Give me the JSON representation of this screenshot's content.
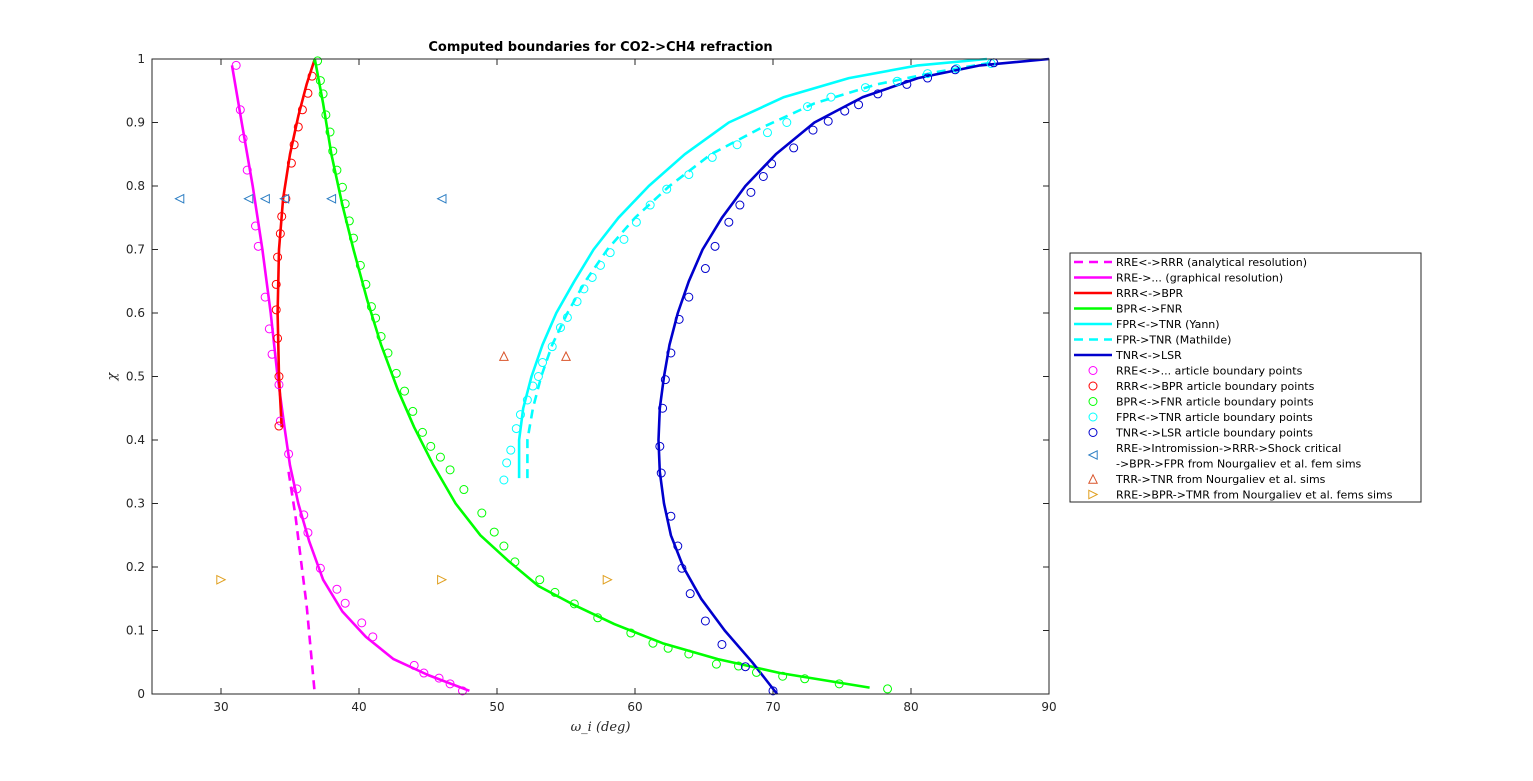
{
  "chart_data": {
    "type": "line",
    "title": "Computed boundaries for CO2->CH4 refraction",
    "xlabel": "ω_i (deg)",
    "ylabel": "χ",
    "xlim": [
      25,
      90
    ],
    "ylim": [
      0,
      1
    ],
    "xticks": [
      "30",
      "40",
      "50",
      "60",
      "70",
      "80",
      "90"
    ],
    "yticks": [
      "0",
      "0.1",
      "0.2",
      "0.3",
      "0.4",
      "0.5",
      "0.6",
      "0.7",
      "0.8",
      "0.9",
      "1"
    ],
    "legend_position": "east-outside",
    "series": [
      {
        "name": "RRE<->RRR (analytical resolution)",
        "color": "#ff00ff",
        "style": "dashed",
        "kind": "line",
        "points": [
          [
            34.9,
            0.35
          ],
          [
            35.4,
            0.28
          ],
          [
            35.8,
            0.21
          ],
          [
            36.2,
            0.14
          ],
          [
            36.5,
            0.07
          ],
          [
            36.8,
            0.0
          ]
        ]
      },
      {
        "name": "RRE->... (graphical resolution)",
        "color": "#ff00ff",
        "style": "solid",
        "kind": "line",
        "points": [
          [
            30.8,
            0.99
          ],
          [
            31.5,
            0.9
          ],
          [
            32.3,
            0.8
          ],
          [
            33.0,
            0.7
          ],
          [
            33.6,
            0.6
          ],
          [
            34.1,
            0.5
          ],
          [
            34.6,
            0.42
          ],
          [
            35.0,
            0.36
          ],
          [
            35.6,
            0.3
          ],
          [
            36.4,
            0.24
          ],
          [
            37.4,
            0.18
          ],
          [
            38.8,
            0.13
          ],
          [
            40.5,
            0.09
          ],
          [
            42.5,
            0.055
          ],
          [
            45.0,
            0.03
          ],
          [
            48.0,
            0.005
          ]
        ]
      },
      {
        "name": "RRR<->BPR",
        "color": "#ff0000",
        "style": "solid",
        "kind": "line",
        "points": [
          [
            34.4,
            0.42
          ],
          [
            34.2,
            0.5
          ],
          [
            34.1,
            0.6
          ],
          [
            34.2,
            0.7
          ],
          [
            34.5,
            0.78
          ],
          [
            35.0,
            0.85
          ],
          [
            35.6,
            0.91
          ],
          [
            36.2,
            0.96
          ],
          [
            36.8,
            1.0
          ]
        ]
      },
      {
        "name": "BPR<->FNR",
        "color": "#00ff00",
        "style": "solid",
        "kind": "line",
        "points": [
          [
            36.8,
            1.0
          ],
          [
            37.4,
            0.93
          ],
          [
            38.0,
            0.85
          ],
          [
            38.8,
            0.77
          ],
          [
            39.6,
            0.7
          ],
          [
            40.6,
            0.62
          ],
          [
            41.6,
            0.55
          ],
          [
            42.8,
            0.48
          ],
          [
            44.0,
            0.42
          ],
          [
            45.4,
            0.36
          ],
          [
            47.0,
            0.3
          ],
          [
            48.8,
            0.25
          ],
          [
            50.8,
            0.21
          ],
          [
            53.0,
            0.17
          ],
          [
            55.6,
            0.14
          ],
          [
            58.5,
            0.11
          ],
          [
            62.0,
            0.08
          ],
          [
            66.0,
            0.055
          ],
          [
            70.5,
            0.033
          ],
          [
            77.0,
            0.01
          ]
        ]
      },
      {
        "name": "FPR<->TNR (Yann)",
        "color": "#00ffff",
        "style": "solid",
        "kind": "line",
        "points": [
          [
            51.6,
            0.34
          ],
          [
            51.6,
            0.4
          ],
          [
            51.9,
            0.45
          ],
          [
            52.5,
            0.5
          ],
          [
            53.3,
            0.55
          ],
          [
            54.3,
            0.6
          ],
          [
            55.6,
            0.65
          ],
          [
            57.0,
            0.7
          ],
          [
            58.8,
            0.75
          ],
          [
            61.0,
            0.8
          ],
          [
            63.6,
            0.85
          ],
          [
            66.8,
            0.9
          ],
          [
            70.8,
            0.94
          ],
          [
            75.5,
            0.97
          ],
          [
            80.5,
            0.99
          ],
          [
            85.5,
            1.0
          ]
        ]
      },
      {
        "name": "FPR->TNR (Mathilde)",
        "color": "#00ffff",
        "style": "dashed",
        "kind": "line",
        "points": [
          [
            52.2,
            0.34
          ],
          [
            52.2,
            0.4
          ],
          [
            52.6,
            0.45
          ],
          [
            53.2,
            0.5
          ],
          [
            54.0,
            0.55
          ],
          [
            55.1,
            0.6
          ],
          [
            56.4,
            0.65
          ],
          [
            58.0,
            0.7
          ],
          [
            60.0,
            0.75
          ],
          [
            62.5,
            0.8
          ],
          [
            65.5,
            0.85
          ],
          [
            69.0,
            0.89
          ],
          [
            73.0,
            0.93
          ],
          [
            77.5,
            0.96
          ],
          [
            82.0,
            0.98
          ],
          [
            86.0,
            0.995
          ]
        ]
      },
      {
        "name": "TNR<->LSR",
        "color": "#0000cd",
        "style": "solid",
        "kind": "line",
        "points": [
          [
            70.3,
            0.0
          ],
          [
            68.5,
            0.05
          ],
          [
            66.5,
            0.1
          ],
          [
            64.8,
            0.15
          ],
          [
            63.5,
            0.2
          ],
          [
            62.6,
            0.25
          ],
          [
            62.1,
            0.3
          ],
          [
            61.8,
            0.35
          ],
          [
            61.7,
            0.4
          ],
          [
            61.8,
            0.45
          ],
          [
            62.1,
            0.5
          ],
          [
            62.5,
            0.55
          ],
          [
            63.1,
            0.6
          ],
          [
            63.9,
            0.65
          ],
          [
            64.9,
            0.7
          ],
          [
            66.3,
            0.75
          ],
          [
            68.0,
            0.8
          ],
          [
            70.2,
            0.85
          ],
          [
            73.0,
            0.9
          ],
          [
            76.5,
            0.94
          ],
          [
            80.5,
            0.97
          ],
          [
            85.0,
            0.99
          ],
          [
            90.0,
            1.0
          ]
        ]
      },
      {
        "name": "RRE<->... article boundary points",
        "color": "#ff00ff",
        "kind": "circle",
        "points": [
          [
            31.1,
            0.99
          ],
          [
            31.4,
            0.92
          ],
          [
            31.6,
            0.875
          ],
          [
            31.9,
            0.825
          ],
          [
            32.5,
            0.737
          ],
          [
            32.7,
            0.705
          ],
          [
            33.2,
            0.625
          ],
          [
            33.5,
            0.575
          ],
          [
            33.7,
            0.535
          ],
          [
            34.2,
            0.487
          ],
          [
            34.3,
            0.43
          ],
          [
            34.9,
            0.378
          ],
          [
            35.5,
            0.323
          ],
          [
            36.0,
            0.282
          ],
          [
            36.3,
            0.254
          ],
          [
            37.2,
            0.198
          ],
          [
            38.4,
            0.165
          ],
          [
            39.0,
            0.143
          ],
          [
            40.2,
            0.112
          ],
          [
            41.0,
            0.09
          ],
          [
            44.0,
            0.045
          ],
          [
            44.7,
            0.033
          ],
          [
            45.8,
            0.025
          ],
          [
            46.6,
            0.016
          ],
          [
            47.5,
            0.005
          ]
        ]
      },
      {
        "name": "RRR<->BPR article boundary points",
        "color": "#ff0000",
        "kind": "circle",
        "points": [
          [
            34.2,
            0.422
          ],
          [
            34.2,
            0.5
          ],
          [
            34.1,
            0.56
          ],
          [
            34.0,
            0.605
          ],
          [
            34.0,
            0.645
          ],
          [
            34.1,
            0.688
          ],
          [
            34.3,
            0.725
          ],
          [
            34.4,
            0.752
          ],
          [
            34.7,
            0.78
          ],
          [
            35.1,
            0.836
          ],
          [
            35.3,
            0.865
          ],
          [
            35.6,
            0.893
          ],
          [
            35.9,
            0.92
          ],
          [
            36.3,
            0.946
          ],
          [
            36.6,
            0.973
          ]
        ]
      },
      {
        "name": "BPR<->FNR article boundary points",
        "color": "#00ff00",
        "kind": "circle",
        "points": [
          [
            37.0,
            0.997
          ],
          [
            37.2,
            0.966
          ],
          [
            37.4,
            0.945
          ],
          [
            37.6,
            0.912
          ],
          [
            37.9,
            0.885
          ],
          [
            38.1,
            0.855
          ],
          [
            38.4,
            0.825
          ],
          [
            38.8,
            0.798
          ],
          [
            39.0,
            0.772
          ],
          [
            39.3,
            0.745
          ],
          [
            39.6,
            0.718
          ],
          [
            40.1,
            0.675
          ],
          [
            40.5,
            0.645
          ],
          [
            40.9,
            0.61
          ],
          [
            41.2,
            0.592
          ],
          [
            41.6,
            0.563
          ],
          [
            42.1,
            0.537
          ],
          [
            42.7,
            0.505
          ],
          [
            43.3,
            0.477
          ],
          [
            43.9,
            0.445
          ],
          [
            44.6,
            0.412
          ],
          [
            45.2,
            0.39
          ],
          [
            45.9,
            0.373
          ],
          [
            46.6,
            0.353
          ],
          [
            47.6,
            0.322
          ],
          [
            48.9,
            0.285
          ],
          [
            49.8,
            0.255
          ],
          [
            50.5,
            0.233
          ],
          [
            51.3,
            0.208
          ],
          [
            53.1,
            0.18
          ],
          [
            54.2,
            0.16
          ],
          [
            55.6,
            0.142
          ],
          [
            57.3,
            0.12
          ],
          [
            59.7,
            0.096
          ],
          [
            61.3,
            0.08
          ],
          [
            62.4,
            0.072
          ],
          [
            63.9,
            0.063
          ],
          [
            65.9,
            0.047
          ],
          [
            67.5,
            0.044
          ],
          [
            68.8,
            0.034
          ],
          [
            70.7,
            0.028
          ],
          [
            72.3,
            0.024
          ],
          [
            74.8,
            0.016
          ],
          [
            78.3,
            0.008
          ]
        ]
      },
      {
        "name": "FPR<->TNR article boundary points",
        "color": "#00ffff",
        "kind": "circle",
        "points": [
          [
            50.5,
            0.337
          ],
          [
            50.7,
            0.364
          ],
          [
            51.0,
            0.384
          ],
          [
            51.4,
            0.418
          ],
          [
            51.7,
            0.44
          ],
          [
            52.2,
            0.463
          ],
          [
            52.6,
            0.485
          ],
          [
            53.0,
            0.5
          ],
          [
            53.3,
            0.522
          ],
          [
            54.0,
            0.547
          ],
          [
            54.6,
            0.577
          ],
          [
            55.1,
            0.593
          ],
          [
            55.8,
            0.618
          ],
          [
            56.3,
            0.638
          ],
          [
            56.9,
            0.656
          ],
          [
            57.5,
            0.675
          ],
          [
            58.2,
            0.695
          ],
          [
            59.2,
            0.716
          ],
          [
            60.1,
            0.743
          ],
          [
            61.1,
            0.77
          ],
          [
            62.3,
            0.795
          ],
          [
            63.9,
            0.818
          ],
          [
            65.6,
            0.845
          ],
          [
            67.4,
            0.865
          ],
          [
            69.6,
            0.884
          ],
          [
            71.0,
            0.9
          ],
          [
            72.5,
            0.925
          ],
          [
            74.2,
            0.94
          ],
          [
            76.7,
            0.955
          ],
          [
            79.0,
            0.965
          ],
          [
            81.2,
            0.977
          ],
          [
            83.3,
            0.985
          ],
          [
            85.8,
            0.993
          ]
        ]
      },
      {
        "name": "TNR<->LSR article boundary points",
        "color": "#0000cd",
        "kind": "circle",
        "points": [
          [
            70.0,
            0.005
          ],
          [
            68.0,
            0.043
          ],
          [
            66.3,
            0.078
          ],
          [
            65.1,
            0.115
          ],
          [
            64.0,
            0.158
          ],
          [
            63.4,
            0.198
          ],
          [
            63.1,
            0.233
          ],
          [
            62.6,
            0.28
          ],
          [
            61.9,
            0.348
          ],
          [
            61.8,
            0.39
          ],
          [
            62.0,
            0.45
          ],
          [
            62.2,
            0.495
          ],
          [
            62.6,
            0.537
          ],
          [
            63.2,
            0.59
          ],
          [
            63.9,
            0.625
          ],
          [
            65.1,
            0.67
          ],
          [
            65.8,
            0.705
          ],
          [
            66.8,
            0.743
          ],
          [
            67.6,
            0.77
          ],
          [
            68.4,
            0.79
          ],
          [
            69.3,
            0.815
          ],
          [
            69.9,
            0.835
          ],
          [
            71.5,
            0.86
          ],
          [
            72.9,
            0.888
          ],
          [
            74.0,
            0.902
          ],
          [
            75.2,
            0.918
          ],
          [
            76.2,
            0.928
          ],
          [
            77.6,
            0.945
          ],
          [
            79.7,
            0.96
          ],
          [
            81.2,
            0.97
          ],
          [
            83.2,
            0.983
          ],
          [
            86.0,
            0.994
          ]
        ]
      },
      {
        "name": "RRE->Intromission->RRR->Shock critical",
        "name_line2": "->BPR->FPR from Nourgaliev et al. fem sims",
        "color": "#2e7fc4",
        "kind": "tri-left",
        "points": [
          [
            27.0,
            0.78
          ],
          [
            32.0,
            0.78
          ],
          [
            33.2,
            0.78
          ],
          [
            34.6,
            0.78
          ],
          [
            38.0,
            0.78
          ],
          [
            46.0,
            0.78
          ]
        ]
      },
      {
        "name": "TRR->TNR from Nourgaliev et al. sims",
        "color": "#d9542a",
        "kind": "tri-up",
        "points": [
          [
            50.5,
            0.532
          ],
          [
            55.0,
            0.532
          ]
        ]
      },
      {
        "name": "RRE->BPR->TMR from Nourgaliev et al. fems sims",
        "color": "#e0a020",
        "kind": "tri-right",
        "points": [
          [
            30.0,
            0.18
          ],
          [
            46.0,
            0.18
          ],
          [
            58.0,
            0.18
          ]
        ]
      }
    ]
  }
}
